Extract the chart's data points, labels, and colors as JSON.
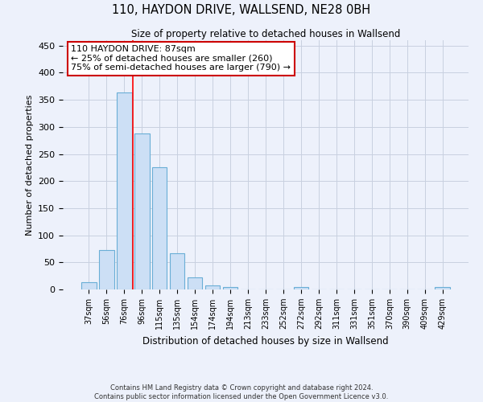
{
  "title": "110, HAYDON DRIVE, WALLSEND, NE28 0BH",
  "subtitle": "Size of property relative to detached houses in Wallsend",
  "xlabel": "Distribution of detached houses by size in Wallsend",
  "ylabel": "Number of detached properties",
  "bar_labels": [
    "37sqm",
    "56sqm",
    "76sqm",
    "96sqm",
    "115sqm",
    "135sqm",
    "154sqm",
    "174sqm",
    "194sqm",
    "213sqm",
    "233sqm",
    "252sqm",
    "272sqm",
    "292sqm",
    "311sqm",
    "331sqm",
    "351sqm",
    "370sqm",
    "390sqm",
    "409sqm",
    "429sqm"
  ],
  "bar_values": [
    14,
    72,
    363,
    288,
    226,
    67,
    22,
    7,
    5,
    0,
    0,
    0,
    4,
    0,
    0,
    0,
    0,
    0,
    0,
    0,
    5
  ],
  "bar_color": "#ccdff5",
  "bar_edge_color": "#6aaed6",
  "grid_color": "#c8d0e0",
  "background_color": "#edf1fb",
  "ylim": [
    0,
    460
  ],
  "red_line_x": 2.5,
  "annotation_text": "110 HAYDON DRIVE: 87sqm\n← 25% of detached houses are smaller (260)\n75% of semi-detached houses are larger (790) →",
  "annotation_box_color": "#ffffff",
  "annotation_box_edge_color": "#cc0000",
  "footer_line1": "Contains HM Land Registry data © Crown copyright and database right 2024.",
  "footer_line2": "Contains public sector information licensed under the Open Government Licence v3.0."
}
